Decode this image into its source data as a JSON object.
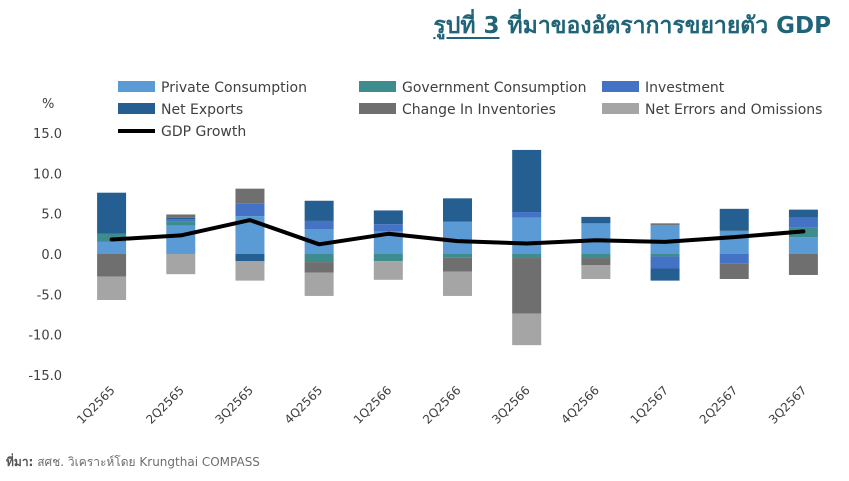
{
  "title": {
    "number": "รูปที่ 3",
    "text": "ที่มาของอัตราการขยายตัว GDP"
  },
  "source": {
    "label": "ที่มา:",
    "text": "สศช. วิเคราะห์โดย Krungthai COMPASS"
  },
  "colors": {
    "private": "#5b9bd5",
    "government": "#3d8c8e",
    "investment": "#4472c4",
    "net_exports": "#255e91",
    "inventories": "#6f6f6f",
    "errors": "#a5a5a5",
    "gdp_line": "#000000",
    "axis_text": "#404040"
  },
  "chart_data": {
    "type": "bar",
    "stacked": true,
    "ylabel": "%",
    "ylim": [
      -15,
      15
    ],
    "yticks": [
      "15.0",
      "10.0",
      "5.0",
      "0.0",
      "-5.0",
      "-10.0",
      "-15.0"
    ],
    "grid": false,
    "legend_position": "top",
    "categories": [
      "1Q2565",
      "2Q2565",
      "3Q2565",
      "4Q2565",
      "1Q2566",
      "2Q2566",
      "3Q2566",
      "4Q2566",
      "1Q2567",
      "2Q2567",
      "3Q2567"
    ],
    "series": [
      {
        "name": "Private Consumption",
        "key": "private",
        "values": [
          1.5,
          3.5,
          4.7,
          3.1,
          2.8,
          4.0,
          4.5,
          3.8,
          3.6,
          2.8,
          2.1
        ]
      },
      {
        "name": "Government Consumption",
        "key": "government",
        "values": [
          1.0,
          0.5,
          0.0,
          -1.0,
          -0.9,
          -0.4,
          -0.5,
          -0.5,
          -0.3,
          0.1,
          1.2
        ]
      },
      {
        "name": "Investment",
        "key": "investment",
        "values": [
          0.0,
          0.3,
          1.6,
          1.0,
          0.9,
          0.0,
          0.7,
          0.0,
          -1.5,
          -1.2,
          1.2
        ]
      },
      {
        "name": "Net Exports",
        "key": "net_exports",
        "values": [
          5.1,
          0.2,
          -0.9,
          2.5,
          1.7,
          2.9,
          7.7,
          0.8,
          -1.5,
          2.7,
          1.0
        ]
      },
      {
        "name": "Change In Inventories",
        "key": "inventories",
        "values": [
          -2.8,
          0.4,
          1.8,
          -1.3,
          0.0,
          -1.8,
          -6.9,
          -0.9,
          0.2,
          -1.9,
          -2.6
        ]
      },
      {
        "name": "Net Errors and Omissions",
        "key": "errors",
        "values": [
          -2.9,
          -2.5,
          -2.4,
          -2.9,
          -2.3,
          -3.0,
          -3.9,
          -1.7,
          0.0,
          0.0,
          0.0
        ]
      }
    ],
    "line": {
      "name": "GDP Growth",
      "key": "gdp_line",
      "values": [
        1.8,
        2.3,
        4.2,
        1.2,
        2.5,
        1.6,
        1.3,
        1.7,
        1.5,
        2.1,
        2.8
      ]
    }
  }
}
